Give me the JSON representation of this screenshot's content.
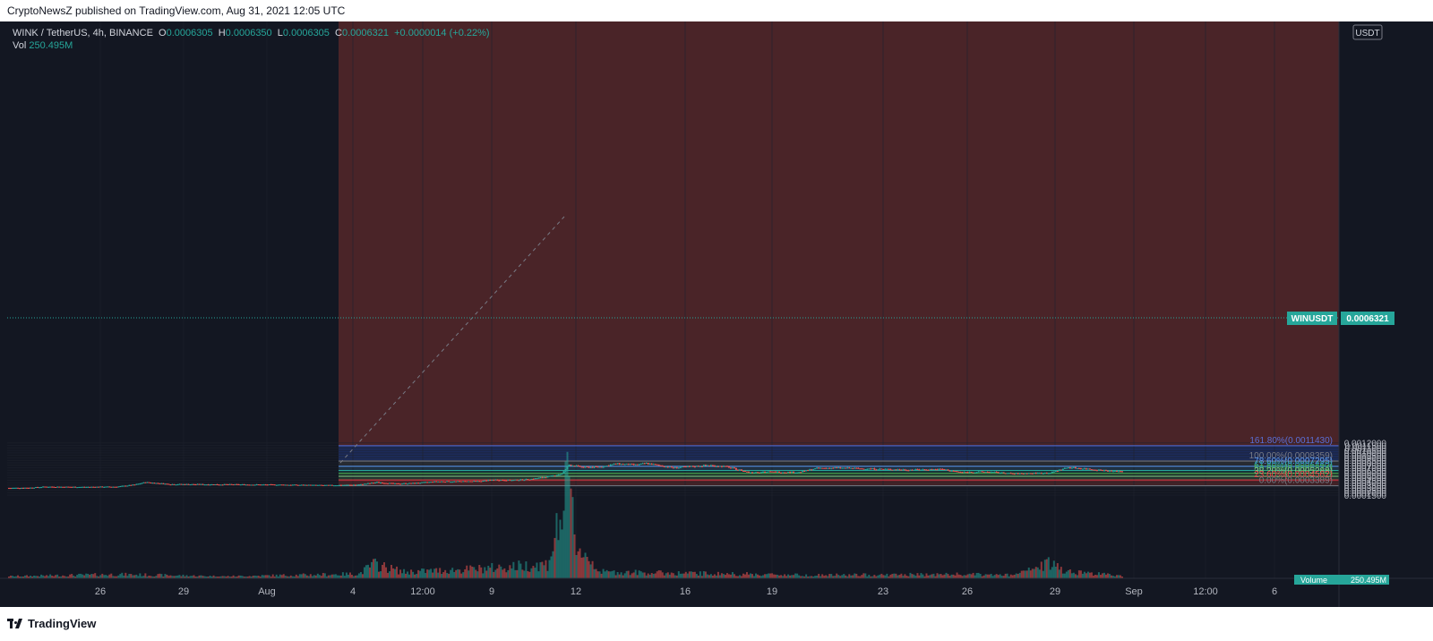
{
  "publisher_line": "CryptoNewsZ published on TradingView.com, Aug 31, 2021 12:05 UTC",
  "legend": {
    "symbol": "WINK / TetherUS, 4h, BINANCE",
    "o_label": "O",
    "o": "0.0006305",
    "h_label": "H",
    "h": "0.0006350",
    "l_label": "L",
    "l": "0.0006305",
    "c_label": "C",
    "c": "0.0006321",
    "change": "+0.0000014 (+0.22%)",
    "vol_label": "Vol",
    "vol": "250.495M"
  },
  "currency_label": "USDT",
  "price_label": {
    "symbol": "WINUSDT",
    "value": "0.0006321"
  },
  "volume_label": {
    "name": "Volume",
    "value": "250.495M"
  },
  "footer_brand": "TradingView",
  "colors": {
    "up": "#26a69a",
    "down": "#ef5350",
    "background": "#131722",
    "grid": "#1e222d"
  },
  "chart_data": {
    "type": "candlestick",
    "y_axis": {
      "ticks": [
        "0.0012000",
        "0.0011500",
        "0.0011000",
        "0.0010500",
        "0.0010000",
        "0.0009500",
        "0.0009000",
        "0.0008500",
        "0.0008000",
        "0.0007500",
        "0.0007000",
        "0.0006500",
        "0.0006000",
        "0.0005500",
        "0.0005000",
        "0.0004500",
        "0.0004000",
        "0.0003500",
        "0.0003000",
        "0.0002500",
        "0.0002000",
        "0.0001500"
      ],
      "ylim": [
        0.0001,
        0.00121
      ]
    },
    "x_axis": {
      "ticks": [
        "26",
        "29",
        "Aug",
        "4",
        "12:00",
        "9",
        "12",
        "16",
        "19",
        "23",
        "26",
        "29",
        "Sep",
        "12:00",
        "6"
      ]
    },
    "fibonacci": [
      {
        "label": "161.80%(0.0011430)",
        "price": 0.001143,
        "color": "#5b6fd6"
      },
      {
        "label": "100.00%(0.0008359)",
        "price": 0.0008359,
        "color": "#787b86"
      },
      {
        "label": "78.60%(0.0007295)",
        "price": 0.0007295,
        "color": "#5b9cf6"
      },
      {
        "label": "61.80%(0.0006460)",
        "price": 0.000646,
        "color": "#26a69a"
      },
      {
        "label": "50.00%(0.0005874)",
        "price": 0.0005874,
        "color": "#4caf50"
      },
      {
        "label": "38.20%(0.0005288)",
        "price": 0.0005288,
        "color": "#81c784"
      },
      {
        "label": "23.60%(0.0004562)",
        "price": 0.0004562,
        "color": "#f23645"
      },
      {
        "label": "0.00%(0.0003389)",
        "price": 0.0003389,
        "color": "#787b86"
      }
    ],
    "price_keypoints": [
      [
        0,
        0.000295
      ],
      [
        12,
        0.0003
      ],
      [
        20,
        0.00032
      ],
      [
        40,
        0.000315
      ],
      [
        60,
        0.00032
      ],
      [
        70,
        0.00036
      ],
      [
        76,
        0.00041
      ],
      [
        90,
        0.00037
      ],
      [
        120,
        0.000365
      ],
      [
        150,
        0.00036
      ],
      [
        178,
        0.000348
      ],
      [
        195,
        0.00036
      ],
      [
        205,
        0.00041
      ],
      [
        215,
        0.00038
      ],
      [
        225,
        0.00039
      ],
      [
        238,
        0.000425
      ],
      [
        250,
        0.000425
      ],
      [
        262,
        0.00043
      ],
      [
        270,
        0.00046
      ],
      [
        280,
        0.00045
      ],
      [
        290,
        0.00047
      ],
      [
        300,
        0.00052
      ],
      [
        308,
        0.00058
      ],
      [
        312,
        0.00076
      ],
      [
        320,
        0.00071
      ],
      [
        330,
        0.00072
      ],
      [
        338,
        0.00078
      ],
      [
        350,
        0.00076
      ],
      [
        355,
        0.00079
      ],
      [
        370,
        0.0007
      ],
      [
        390,
        0.00075
      ],
      [
        400,
        0.00072
      ],
      [
        412,
        0.00061
      ],
      [
        420,
        0.00062
      ],
      [
        440,
        0.00061
      ],
      [
        450,
        0.00069
      ],
      [
        460,
        0.0007
      ],
      [
        480,
        0.00068
      ],
      [
        500,
        0.00066
      ],
      [
        520,
        0.00067
      ],
      [
        530,
        0.00061
      ],
      [
        545,
        0.00062
      ],
      [
        560,
        0.00058
      ],
      [
        565,
        0.000585
      ],
      [
        580,
        0.0006
      ],
      [
        590,
        0.00071
      ],
      [
        600,
        0.00068
      ],
      [
        615,
        0.00063
      ],
      [
        620,
        0.000632
      ]
    ],
    "volume_keypoints": [
      [
        0,
        12
      ],
      [
        60,
        25
      ],
      [
        120,
        12
      ],
      [
        195,
        28
      ],
      [
        203,
        90
      ],
      [
        220,
        40
      ],
      [
        262,
        60
      ],
      [
        300,
        90
      ],
      [
        312,
        580
      ],
      [
        316,
        210
      ],
      [
        330,
        40
      ],
      [
        450,
        20
      ],
      [
        530,
        25
      ],
      [
        560,
        20
      ],
      [
        580,
        95
      ],
      [
        590,
        45
      ],
      [
        620,
        15
      ]
    ]
  }
}
